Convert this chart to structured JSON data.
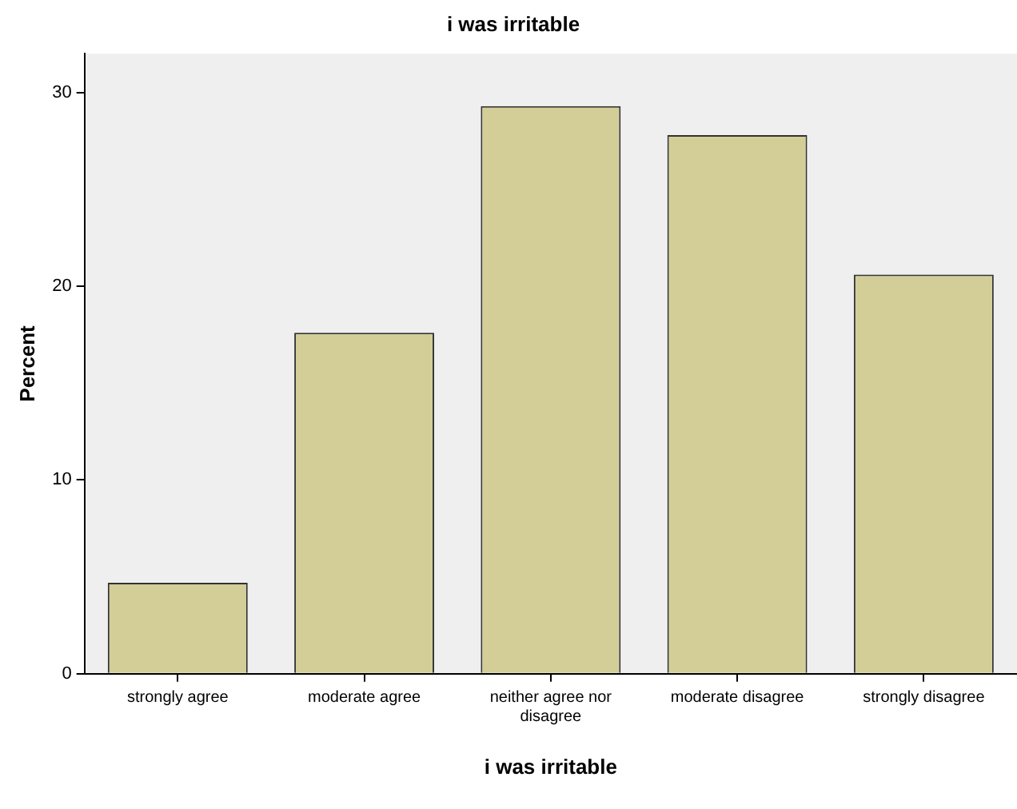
{
  "chart_data": {
    "type": "bar",
    "title": "i was irritable",
    "xlabel": "i was irritable",
    "ylabel": "Percent",
    "categories": [
      "strongly agree",
      "moderate agree",
      "neither agree nor disagree",
      "moderate disagree",
      "strongly disagree"
    ],
    "values": [
      4.7,
      17.6,
      29.3,
      27.8,
      20.6
    ],
    "color": "#d3ce97",
    "ylim": [
      0,
      32
    ],
    "yticks": [
      0,
      10,
      20,
      30
    ],
    "grid": false,
    "legend": false
  }
}
